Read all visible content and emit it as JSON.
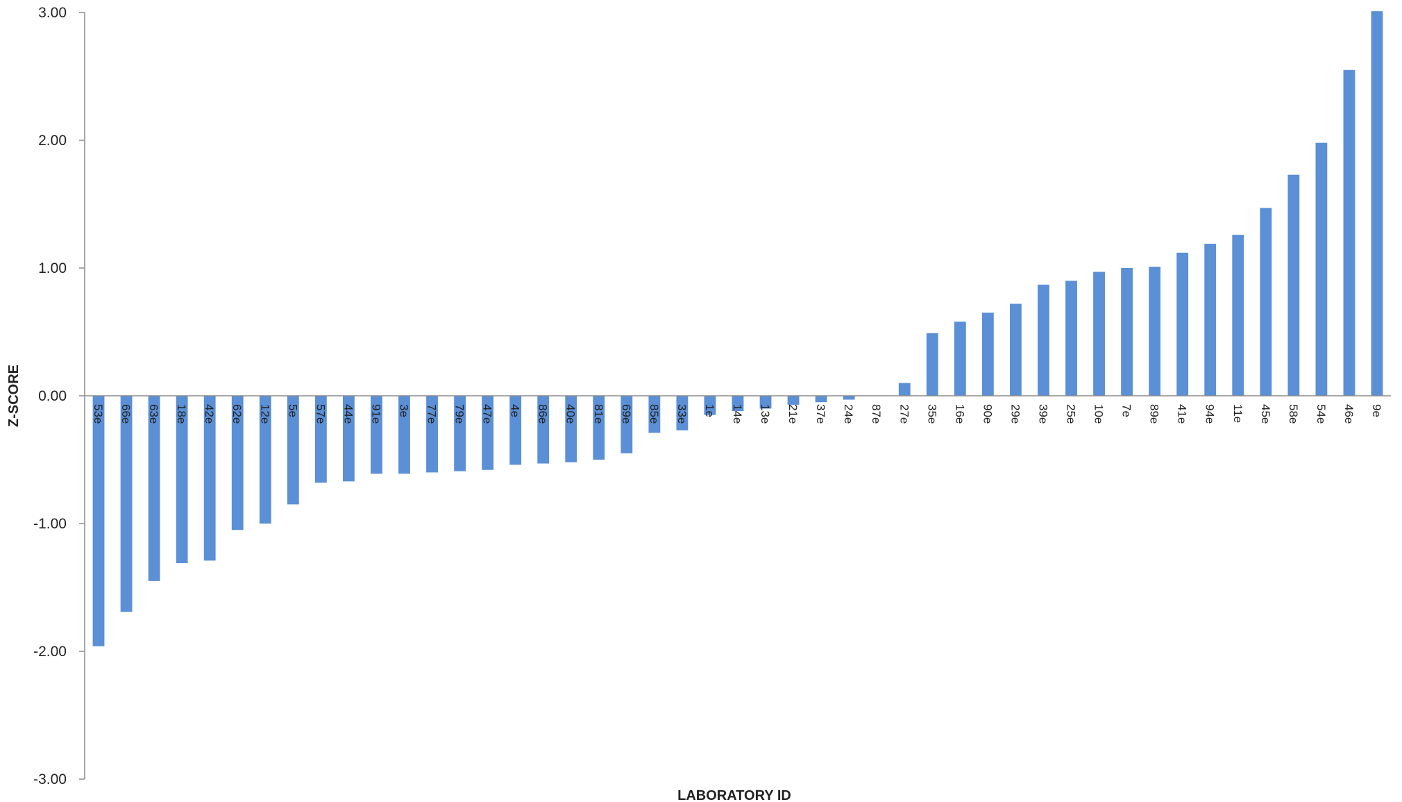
{
  "chart_data": {
    "type": "bar",
    "xlabel": "LABORATORY ID",
    "ylabel": "Z-SCORE",
    "ylim": [
      -3,
      3
    ],
    "yticks": [
      3,
      2,
      1,
      0,
      -1,
      -2,
      -3
    ],
    "ytick_labels": [
      "3.00",
      "2.00",
      "1.00",
      "0.00",
      "-1.00",
      "-2.00",
      "-3.00"
    ],
    "grid": false,
    "legend": "none",
    "bar_color": "#5b8fd6",
    "categories": [
      "53e",
      "66e",
      "63e",
      "18e",
      "42e",
      "62e",
      "12e",
      "5e",
      "57e",
      "44e",
      "91e",
      "3e",
      "77e",
      "79e",
      "47e",
      "4e",
      "86e",
      "40e",
      "81e",
      "69e",
      "85e",
      "33e",
      "1e",
      "14e",
      "13e",
      "21e",
      "37e",
      "24e",
      "87e",
      "27e",
      "35e",
      "16e",
      "90e",
      "29e",
      "39e",
      "25e",
      "10e",
      "7e",
      "89e",
      "41e",
      "94e",
      "11e",
      "45e",
      "58e",
      "54e",
      "46e",
      "9e"
    ],
    "values": [
      -1.96,
      -1.69,
      -1.45,
      -1.31,
      -1.29,
      -1.05,
      -1.0,
      -0.85,
      -0.68,
      -0.67,
      -0.61,
      -0.61,
      -0.6,
      -0.59,
      -0.58,
      -0.54,
      -0.53,
      -0.52,
      -0.5,
      -0.45,
      -0.29,
      -0.27,
      -0.15,
      -0.12,
      -0.1,
      -0.07,
      -0.05,
      -0.03,
      0.0,
      0.1,
      0.49,
      0.58,
      0.65,
      0.72,
      0.87,
      0.9,
      0.97,
      1.0,
      1.01,
      1.12,
      1.19,
      1.26,
      1.47,
      1.73,
      1.98,
      2.55,
      3.01
    ]
  }
}
